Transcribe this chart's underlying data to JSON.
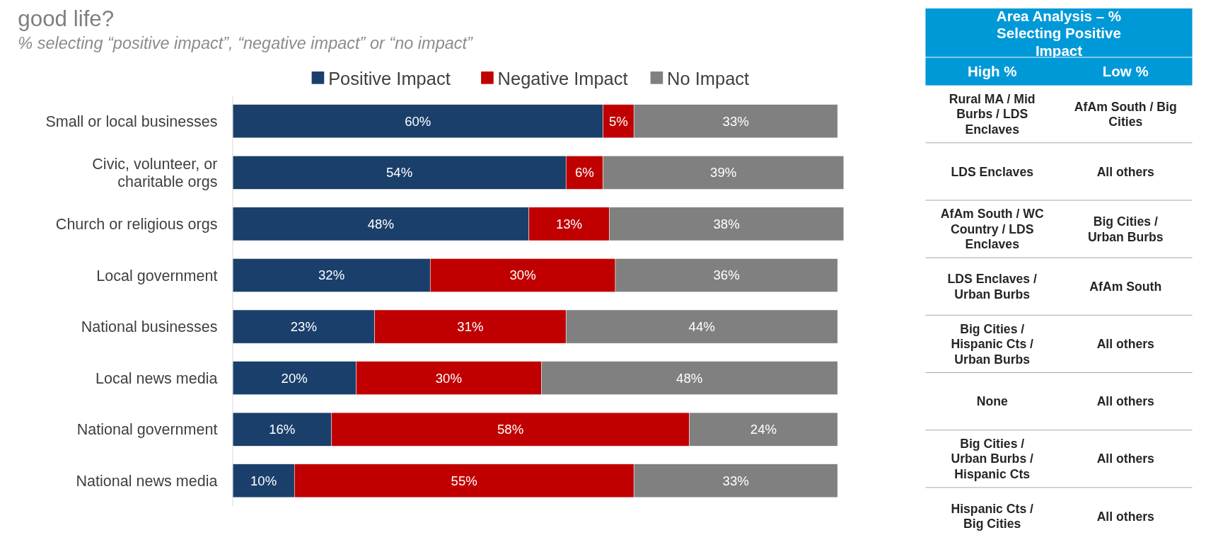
{
  "chart_data": [
    {
      "type": "bar",
      "orientation": "horizontal",
      "stacked": true,
      "title": "good life?",
      "subtitle": "% selecting “positive impact”, “negative impact” or “no impact”",
      "legend": "top",
      "categories": [
        "Small or local businesses",
        "Civic, volunteer, or charitable orgs",
        "Church or religious orgs",
        "Local government",
        "National businesses",
        "Local news media",
        "National government",
        "National news media"
      ],
      "series": [
        {
          "name": "Positive Impact",
          "color": "#1a3f6b",
          "values": [
            60,
            54,
            48,
            32,
            23,
            20,
            16,
            10
          ],
          "value_labels": [
            "60%",
            "54%",
            "48%",
            "32%",
            "23%",
            "20%",
            "16%",
            "10%"
          ]
        },
        {
          "name": "Negative Impact",
          "color": "#c00000",
          "values": [
            5,
            6,
            13,
            30,
            31,
            30,
            58,
            55
          ],
          "value_labels": [
            "5%",
            "6%",
            "13%",
            "30%",
            "31%",
            "30%",
            "58%",
            "55%"
          ]
        },
        {
          "name": "No Impact",
          "color": "#808080",
          "values": [
            33,
            39,
            38,
            36,
            44,
            48,
            24,
            33
          ],
          "value_labels": [
            "33%",
            "39%",
            "38%",
            "36%",
            "44%",
            "48%",
            "24%",
            "33%"
          ]
        }
      ]
    },
    {
      "type": "other",
      "title": "Area Analysis – % Selecting Positive Impact",
      "annotations": [
        "High %",
        "Low %",
        "Rural MA / Mid Burbs / LDS Enclaves",
        "AfAm South / Big Cities",
        "LDS Enclaves",
        "All others",
        "AfAm South / WC Country / LDS Enclaves",
        "Big Cities / Urban Burbs",
        "LDS Enclaves / Urban Burbs",
        "AfAm South",
        "Big Cities / Hispanic Cts / Urban Burbs",
        "All others",
        "None",
        "All others",
        "Big Cities / Urban Burbs / Hispanic Cts",
        "All others",
        "Hispanic Cts / Big Cities",
        "All others"
      ]
    }
  ]
}
